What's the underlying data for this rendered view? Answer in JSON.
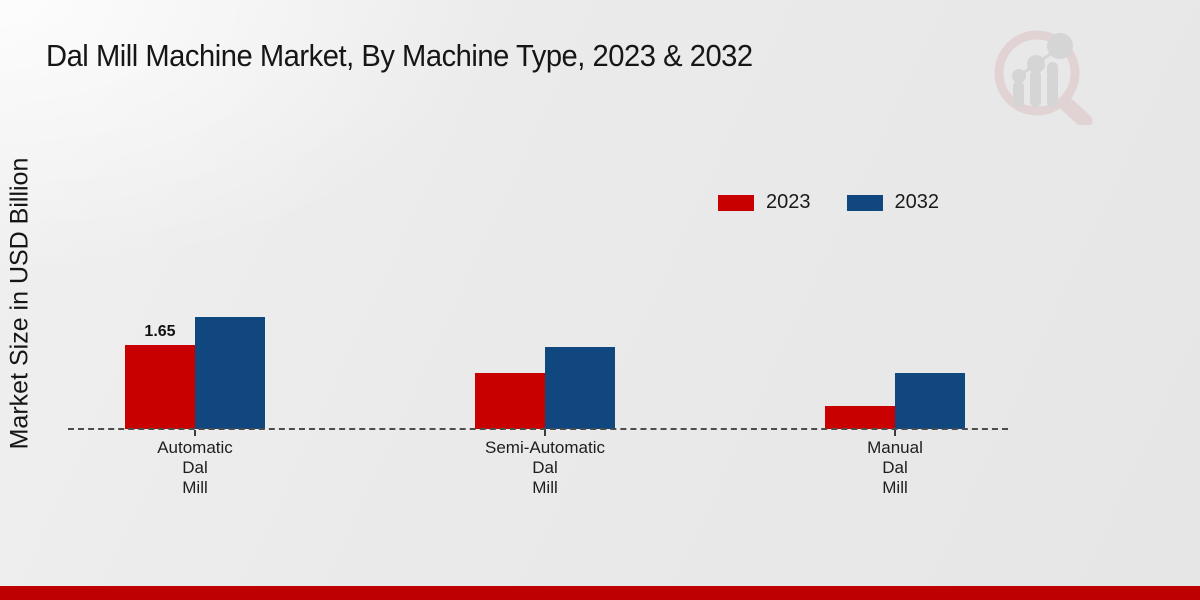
{
  "title": "Dal Mill Machine Market, By Machine Type, 2023 & 2032",
  "footer_bar_color": "#bf0000",
  "watermark_icon": "magnifier-bar-chart-logo",
  "chart_data": {
    "type": "bar",
    "title": "Dal Mill Machine Market, By Machine Type, 2023 & 2032",
    "xlabel": "",
    "ylabel": "Market Size in USD Billion",
    "categories": [
      "Automatic Dal Mill",
      "Semi-Automatic Dal Mill",
      "Manual Dal Mill"
    ],
    "category_lines": [
      [
        "Automatic",
        "Dal",
        "Mill"
      ],
      [
        "Semi-Automatic",
        "Dal",
        "Mill"
      ],
      [
        "Manual",
        "Dal",
        "Mill"
      ]
    ],
    "series": [
      {
        "name": "2023",
        "color": "#c80000",
        "values": [
          1.65,
          1.1,
          0.45
        ]
      },
      {
        "name": "2032",
        "color": "#10477e",
        "values": [
          2.2,
          1.6,
          1.1
        ]
      }
    ],
    "annotations": [
      {
        "series": "2023",
        "category_index": 0,
        "text": "1.65"
      }
    ],
    "ylim": [
      0,
      2.5
    ],
    "grid": false,
    "y_axis_ticks_visible": false,
    "baseline_style": "dashed",
    "legend_position": "top-right"
  }
}
